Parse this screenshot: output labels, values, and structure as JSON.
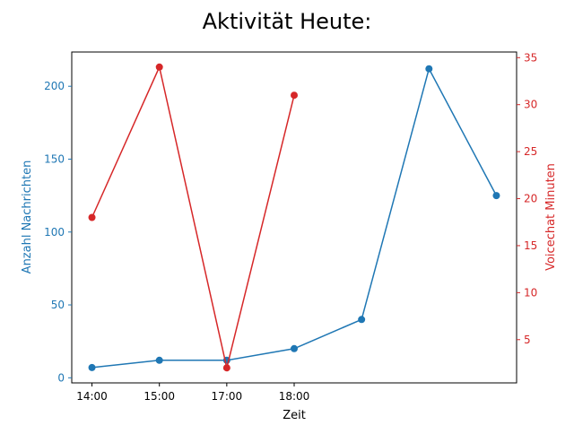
{
  "chart_data": {
    "type": "line",
    "title": "Aktivität Heute:",
    "xlabel": "Zeit",
    "x_positions": [
      0,
      1,
      2,
      3,
      4,
      5,
      6
    ],
    "xtick_positions": [
      0,
      1,
      2,
      3
    ],
    "xtick_labels": [
      "14:00",
      "15:00",
      "17:00",
      "18:00"
    ],
    "xlim": [
      -0.3,
      6.3
    ],
    "left_axis": {
      "label": "Anzahl Nachrichten",
      "color": "#1f77b4",
      "ylim": [
        -3.5,
        223.5
      ],
      "ticks": [
        0,
        50,
        100,
        150,
        200
      ]
    },
    "right_axis": {
      "label": "Voicechat Minuten",
      "color": "#d62728",
      "ylim": [
        0.4,
        35.6
      ],
      "ticks": [
        5,
        10,
        15,
        20,
        25,
        30,
        35
      ]
    },
    "series": [
      {
        "axis": "left",
        "color": "#1f77b4",
        "x": [
          0,
          1,
          2,
          3,
          4,
          5,
          6
        ],
        "values": [
          7,
          12,
          12,
          20,
          40,
          212,
          125
        ]
      },
      {
        "axis": "right",
        "color": "#d62728",
        "x": [
          0,
          1,
          2,
          3
        ],
        "values": [
          18,
          34,
          2,
          31
        ]
      }
    ],
    "grid": false,
    "legend": "none"
  }
}
